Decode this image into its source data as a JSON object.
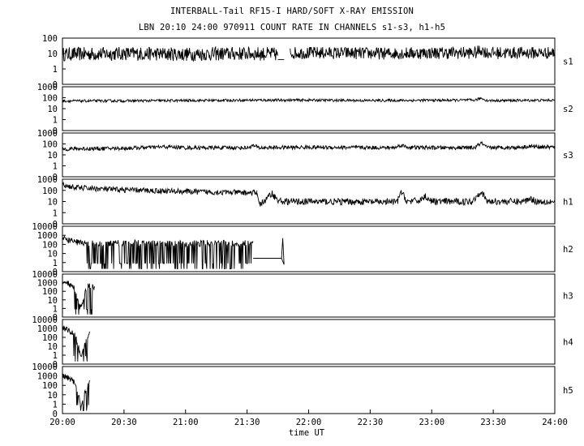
{
  "title_line1": "INTERBALL-Tail RF15-I HARD/SOFT X-RAY EMISSION",
  "title_line2": "LBN 20:10 24:00 970911  COUNT RATE IN CHANNELS s1-s3, h1-h5",
  "chart_data": {
    "type": "line",
    "title": "INTERBALL-Tail RF15-I HARD/SOFT X-RAY EMISSION",
    "subtitle": "LBN 20:10 24:00 970911  COUNT RATE IN CHANNELS s1-s3, h1-h5",
    "xlabel": "time UT",
    "x_ticks": [
      "20:00",
      "20:30",
      "21:00",
      "21:30",
      "22:00",
      "22:30",
      "23:00",
      "23:30",
      "24:00"
    ],
    "xlim_hours": [
      20,
      24
    ],
    "y_scale": "log",
    "grid": false,
    "panels": [
      {
        "name": "s1",
        "y_ticks": [
          "100",
          "10",
          "1",
          "0"
        ],
        "decades": 2
      },
      {
        "name": "s2",
        "y_ticks": [
          "1000",
          "100",
          "10",
          "1",
          "0"
        ],
        "decades": 3
      },
      {
        "name": "s3",
        "y_ticks": [
          "1000",
          "100",
          "10",
          "1",
          "0"
        ],
        "decades": 3
      },
      {
        "name": "h1",
        "y_ticks": [
          "1000",
          "100",
          "10",
          "1",
          "0"
        ],
        "decades": 3
      },
      {
        "name": "h2",
        "y_ticks": [
          "10000",
          "1000",
          "100",
          "10",
          "1",
          "0"
        ],
        "decades": 4
      },
      {
        "name": "h3",
        "y_ticks": [
          "10000",
          "1000",
          "100",
          "10",
          "1",
          "0"
        ],
        "decades": 4
      },
      {
        "name": "h4",
        "y_ticks": [
          "10000",
          "1000",
          "100",
          "10",
          "1",
          "0"
        ],
        "decades": 4
      },
      {
        "name": "h5",
        "y_ticks": [
          "10000",
          "1000",
          "100",
          "10",
          "1",
          "0"
        ],
        "decades": 4
      }
    ],
    "series": [
      {
        "name": "s1",
        "segments": [
          {
            "t": [
              20.0,
              20.5,
              21.0,
              21.5,
              21.75
            ],
            "v": [
              9,
              10,
              9,
              10,
              9
            ],
            "noise": 0.45
          },
          {
            "t": [
              21.75,
              21.8
            ],
            "v": [
              4,
              4
            ],
            "noise": 0
          },
          {
            "t": [
              21.85,
              22.2,
              22.6,
              23.0,
              23.36,
              23.4,
              23.45,
              23.6,
              24.0
            ],
            "v": [
              11,
              11,
              10,
              11,
              11,
              18,
              11,
              11,
              11
            ],
            "noise": 0.4
          }
        ]
      },
      {
        "name": "s2",
        "segments": [
          {
            "t": [
              20.0,
              20.5,
              21.0,
              21.5,
              22.0,
              22.5,
              23.0,
              23.35,
              23.4,
              23.45,
              23.6,
              24.0
            ],
            "v": [
              50,
              52,
              55,
              60,
              60,
              55,
              58,
              60,
              90,
              55,
              55,
              60
            ],
            "noise": 0.12
          }
        ]
      },
      {
        "name": "s3",
        "segments": [
          {
            "t": [
              20.0,
              20.5,
              20.85,
              21.0,
              21.5,
              21.55,
              21.6,
              22.0,
              22.7,
              22.75,
              22.8,
              23.0,
              23.35,
              23.4,
              23.45,
              23.7,
              23.8,
              24.0
            ],
            "v": [
              35,
              40,
              55,
              45,
              45,
              70,
              45,
              50,
              45,
              80,
              50,
              45,
              45,
              120,
              45,
              50,
              60,
              50
            ],
            "noise": 0.18
          }
        ]
      },
      {
        "name": "h1",
        "segments": [
          {
            "t": [
              20.0,
              20.1,
              20.4,
              20.8,
              21.2,
              21.58
            ],
            "v": [
              300,
              180,
              120,
              90,
              70,
              60
            ],
            "noise": 0.25
          },
          {
            "t": [
              21.58,
              21.6
            ],
            "v": [
              60,
              6
            ],
            "noise": 0
          },
          {
            "t": [
              21.6,
              21.65,
              21.7,
              21.75,
              21.8,
              22.0,
              22.72,
              22.75,
              22.8,
              22.9,
              22.95,
              23.0,
              23.33,
              23.4,
              23.45,
              23.75,
              23.8,
              23.85,
              24.0
            ],
            "v": [
              6,
              12,
              60,
              12,
              10,
              10,
              9,
              80,
              10,
              12,
              30,
              10,
              10,
              90,
              10,
              10,
              20,
              10,
              10
            ],
            "noise": 0.3
          }
        ]
      },
      {
        "name": "h2",
        "segments": [
          {
            "t": [
              20.0,
              20.1,
              20.2,
              20.5,
              21.0,
              21.4,
              21.55
            ],
            "v": [
              400,
              200,
              120,
              150,
              120,
              150,
              120
            ],
            "noise": 0.35,
            "dropouts": [
              20.2,
              21.55
            ]
          },
          {
            "t": [
              21.55,
              21.78
            ],
            "v": [
              3,
              3
            ],
            "noise": 0
          },
          {
            "t": [
              21.78,
              21.79,
              21.8
            ],
            "v": [
              3,
              500,
              0.6
            ],
            "noise": 0
          }
        ]
      },
      {
        "name": "h3",
        "segments": [
          {
            "t": [
              20.0,
              20.05,
              20.1,
              20.15,
              20.2,
              20.26
            ],
            "v": [
              1500,
              800,
              200,
              1,
              500,
              300
            ],
            "noise": 0.3,
            "dropouts": [
              20.1,
              20.26
            ]
          }
        ]
      },
      {
        "name": "h4",
        "segments": [
          {
            "t": [
              20.0,
              20.05,
              20.1,
              20.15,
              20.22
            ],
            "v": [
              1200,
              600,
              200,
              1,
              300
            ],
            "noise": 0.3,
            "dropouts": [
              20.09,
              20.22
            ]
          }
        ]
      },
      {
        "name": "h5",
        "segments": [
          {
            "t": [
              20.0,
              20.05,
              20.1,
              20.15,
              20.22
            ],
            "v": [
              1200,
              600,
              200,
              1,
              300
            ],
            "noise": 0.3,
            "dropouts": [
              20.09,
              20.22
            ]
          }
        ]
      }
    ]
  }
}
